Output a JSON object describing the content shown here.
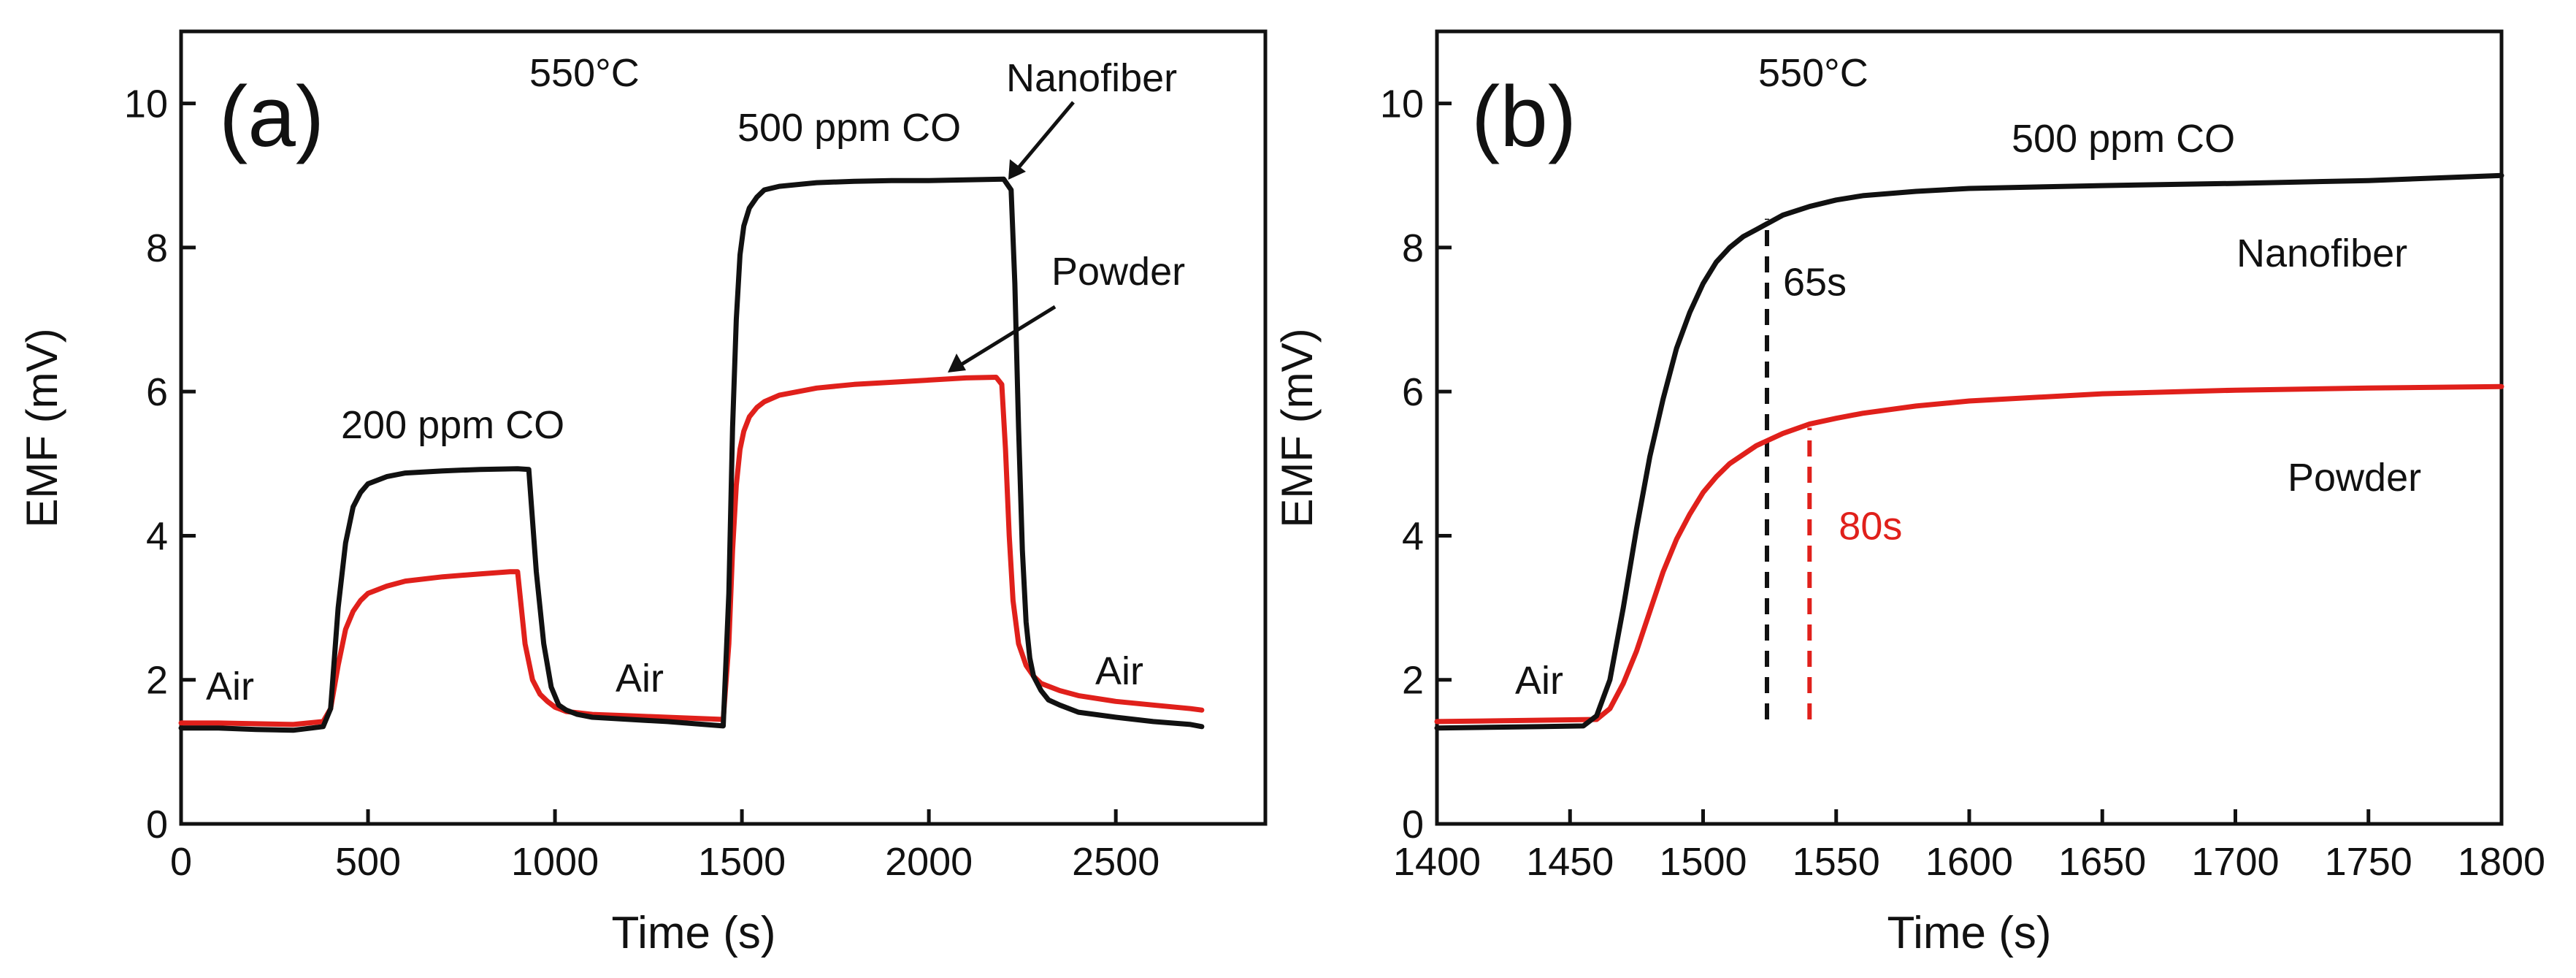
{
  "chart_data": [
    {
      "panel_label": "(a)",
      "type": "line",
      "xlabel": "Time (s)",
      "ylabel": "EMF (mV)",
      "xlim": [
        0,
        2900
      ],
      "ylim": [
        0,
        11
      ],
      "xticks": [
        0,
        500,
        1000,
        1500,
        2000,
        2500
      ],
      "yticks": [
        0,
        2,
        4,
        6,
        8,
        10
      ],
      "grid": false,
      "series": [
        {
          "name": "Nanofiber",
          "color": "#111111",
          "x": [
            0,
            100,
            200,
            300,
            380,
            400,
            420,
            440,
            460,
            480,
            500,
            550,
            600,
            700,
            800,
            900,
            930,
            950,
            970,
            990,
            1010,
            1030,
            1060,
            1100,
            1200,
            1300,
            1400,
            1450,
            1465,
            1475,
            1485,
            1495,
            1505,
            1520,
            1540,
            1560,
            1600,
            1700,
            1800,
            1900,
            2000,
            2100,
            2200,
            2220,
            2230,
            2240,
            2250,
            2260,
            2270,
            2280,
            2300,
            2320,
            2350,
            2400,
            2500,
            2600,
            2700,
            2730
          ],
          "y": [
            1.33,
            1.33,
            1.31,
            1.3,
            1.35,
            1.6,
            3.0,
            3.9,
            4.4,
            4.6,
            4.72,
            4.82,
            4.87,
            4.9,
            4.92,
            4.93,
            4.92,
            3.5,
            2.5,
            1.9,
            1.65,
            1.58,
            1.52,
            1.48,
            1.45,
            1.42,
            1.38,
            1.36,
            3.2,
            5.5,
            7.0,
            7.9,
            8.3,
            8.55,
            8.7,
            8.8,
            8.85,
            8.9,
            8.92,
            8.93,
            8.93,
            8.94,
            8.95,
            8.8,
            7.5,
            5.5,
            3.8,
            2.8,
            2.3,
            2.05,
            1.85,
            1.72,
            1.65,
            1.55,
            1.48,
            1.42,
            1.38,
            1.35
          ]
        },
        {
          "name": "Powder",
          "color": "#e0201b",
          "x": [
            0,
            100,
            200,
            300,
            380,
            400,
            420,
            440,
            460,
            480,
            500,
            550,
            600,
            700,
            800,
            880,
            900,
            910,
            920,
            940,
            960,
            980,
            1000,
            1030,
            1100,
            1200,
            1300,
            1400,
            1450,
            1465,
            1475,
            1485,
            1495,
            1505,
            1520,
            1540,
            1560,
            1600,
            1700,
            1800,
            1900,
            2000,
            2100,
            2180,
            2195,
            2205,
            2215,
            2225,
            2240,
            2260,
            2280,
            2300,
            2350,
            2400,
            2500,
            2600,
            2700,
            2730
          ],
          "y": [
            1.4,
            1.4,
            1.39,
            1.38,
            1.42,
            1.6,
            2.2,
            2.7,
            2.95,
            3.1,
            3.2,
            3.3,
            3.37,
            3.43,
            3.47,
            3.5,
            3.5,
            3.0,
            2.5,
            2.0,
            1.8,
            1.7,
            1.62,
            1.56,
            1.52,
            1.5,
            1.48,
            1.46,
            1.45,
            2.5,
            3.8,
            4.7,
            5.2,
            5.45,
            5.65,
            5.78,
            5.86,
            5.95,
            6.05,
            6.1,
            6.13,
            6.16,
            6.19,
            6.2,
            6.1,
            5.2,
            4.0,
            3.1,
            2.5,
            2.2,
            2.05,
            1.95,
            1.85,
            1.78,
            1.7,
            1.65,
            1.6,
            1.58
          ]
        }
      ],
      "annotations": {
        "temperature": "550°C",
        "co_200": "200 ppm CO",
        "co_500": "500 ppm CO",
        "air_1": "Air",
        "air_2": "Air",
        "air_3": "Air",
        "nanofiber_label": "Nanofiber",
        "powder_label": "Powder"
      }
    },
    {
      "panel_label": "(b)",
      "type": "line",
      "xlabel": "Time (s)",
      "ylabel": "EMF (mV)",
      "xlim": [
        1400,
        1800
      ],
      "ylim": [
        0,
        11
      ],
      "xticks": [
        1400,
        1450,
        1500,
        1550,
        1600,
        1650,
        1700,
        1750,
        1800
      ],
      "yticks": [
        0,
        2,
        4,
        6,
        8,
        10
      ],
      "grid": false,
      "series": [
        {
          "name": "Nanofiber",
          "color": "#111111",
          "x": [
            1400,
            1420,
            1440,
            1455,
            1460,
            1465,
            1470,
            1475,
            1480,
            1485,
            1490,
            1495,
            1500,
            1505,
            1510,
            1515,
            1520,
            1525,
            1530,
            1540,
            1550,
            1560,
            1580,
            1600,
            1650,
            1700,
            1750,
            1800
          ],
          "y": [
            1.33,
            1.34,
            1.35,
            1.36,
            1.5,
            2.0,
            3.0,
            4.1,
            5.1,
            5.9,
            6.6,
            7.1,
            7.5,
            7.8,
            8.0,
            8.15,
            8.25,
            8.35,
            8.45,
            8.57,
            8.66,
            8.72,
            8.78,
            8.82,
            8.86,
            8.89,
            8.93,
            9.0
          ]
        },
        {
          "name": "Powder",
          "color": "#e0201b",
          "x": [
            1400,
            1420,
            1440,
            1460,
            1465,
            1470,
            1475,
            1480,
            1485,
            1490,
            1495,
            1500,
            1505,
            1510,
            1520,
            1530,
            1540,
            1550,
            1560,
            1580,
            1600,
            1650,
            1700,
            1750,
            1800
          ],
          "y": [
            1.42,
            1.43,
            1.44,
            1.45,
            1.6,
            1.95,
            2.4,
            2.95,
            3.5,
            3.95,
            4.3,
            4.6,
            4.82,
            5.0,
            5.25,
            5.42,
            5.55,
            5.63,
            5.7,
            5.8,
            5.87,
            5.97,
            6.02,
            6.05,
            6.07
          ]
        }
      ],
      "markers": [
        {
          "x": 1524,
          "ymin": 1.45,
          "ymax": 8.4,
          "color": "#111111",
          "label": "65s"
        },
        {
          "x": 1540,
          "ymin": 1.45,
          "ymax": 5.5,
          "color": "#e0201b",
          "label": "80s"
        }
      ],
      "annotations": {
        "temperature": "550°C",
        "co_500": "500 ppm CO",
        "air_1": "Air",
        "nanofiber_label": "Nanofiber",
        "powder_label": "Powder"
      }
    }
  ]
}
